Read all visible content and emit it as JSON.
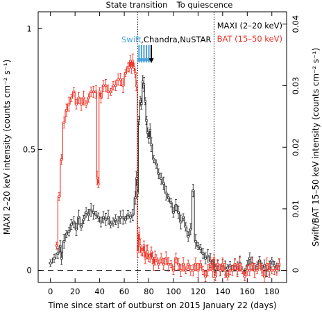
{
  "chart_data": {
    "type": "line",
    "xlabel": "Time since start of outburst on 2015 January 22 (days)",
    "ylabel_left": "MAXI 2–20 keV intensity (counts cm⁻² s⁻¹)",
    "ylabel_right": "Swift/BAT 15–50 keV intensity (counts cm⁻² s⁻¹)",
    "xlim": [
      -10,
      192
    ],
    "ylim_left": [
      -0.05,
      1.07
    ],
    "ylim_right": [
      -0.00196,
      0.042
    ],
    "x_ticks": [
      0,
      20,
      40,
      60,
      80,
      100,
      120,
      140,
      160,
      180
    ],
    "y_ticks_left": [
      0,
      0.5,
      1
    ],
    "y_ticks_right": [
      0,
      0.01,
      0.02,
      0.03,
      0.04
    ],
    "y_tick_labels_left": [
      "0",
      "0.5",
      "1"
    ],
    "y_tick_labels_right": [
      "0",
      "0.01",
      "0.02",
      "0.03",
      "0.04"
    ],
    "zero_line": 0,
    "markers": [
      {
        "label": "State transition",
        "x": 71
      },
      {
        "label": "To quiescence",
        "x": 133
      }
    ],
    "legend": {
      "position": "top-right",
      "entries": [
        "MAXI (2–20 keV)",
        "BAT (15–50 keV)"
      ]
    },
    "obs_labels": {
      "swift": "Swift",
      "rest": ",Chandra,NuSTAR"
    },
    "obs_arrows": {
      "swift": [
        72,
        74,
        76,
        78,
        80
      ],
      "chandra": [
        82
      ]
    },
    "colors": {
      "maxi": "#333333",
      "bat": "#ee3124",
      "swift": "#4aa3df",
      "chandra": "#000000"
    },
    "series": [
      {
        "name": "MAXI (2–20 keV)",
        "axis": "left",
        "x": [
          0,
          3,
          6,
          8,
          9,
          11,
          13,
          15,
          17,
          19,
          21,
          23,
          25,
          27,
          29,
          31,
          33,
          35,
          37,
          39,
          41,
          43,
          45,
          47,
          49,
          51,
          53,
          55,
          57,
          59,
          61,
          63,
          65,
          67,
          69,
          70,
          71,
          72,
          73,
          74,
          75,
          76,
          77,
          78,
          79,
          80,
          81,
          82,
          84,
          86,
          88,
          90,
          92,
          94,
          96,
          98,
          100,
          102,
          104,
          106,
          108,
          110,
          112,
          114,
          116,
          118,
          120,
          122,
          124,
          126,
          128,
          130,
          132,
          134,
          136,
          138,
          140,
          142,
          144,
          146,
          148,
          150,
          152,
          154,
          156,
          158,
          160,
          162,
          164,
          166,
          168,
          170,
          172,
          174,
          176,
          178,
          180,
          182,
          184,
          186
        ],
        "y": [
          0.03,
          0.05,
          0.07,
          0.1,
          0.05,
          0.12,
          0.15,
          0.16,
          0.19,
          0.2,
          0.17,
          0.22,
          0.18,
          0.21,
          0.24,
          0.23,
          0.25,
          0.24,
          0.23,
          0.22,
          0.2,
          0.22,
          0.21,
          0.22,
          0.19,
          0.2,
          0.21,
          0.2,
          0.22,
          0.22,
          0.21,
          0.23,
          0.22,
          0.23,
          0.3,
          0.38,
          0.32,
          0.62,
          0.7,
          0.69,
          0.78,
          0.77,
          0.7,
          0.62,
          0.57,
          0.55,
          0.58,
          0.52,
          0.46,
          0.44,
          0.4,
          0.38,
          0.36,
          0.32,
          0.3,
          0.28,
          0.24,
          0.27,
          0.24,
          0.2,
          0.22,
          0.18,
          0.14,
          0.17,
          0.33,
          0.12,
          0.1,
          0.09,
          0.07,
          0.05,
          0.06,
          0.04,
          0.03,
          0.01,
          0.02,
          0.0,
          0.02,
          0.01,
          0.01,
          0.02,
          0.0,
          0.02,
          0.01,
          0.03,
          0.0,
          -0.01,
          0.02,
          0.05,
          0.03,
          0.0,
          0.02,
          0.04,
          0.01,
          0.02,
          0.0,
          0.01,
          0.04,
          0.02,
          0.01,
          0.02
        ]
      },
      {
        "name": "BAT (15–50 keV)",
        "axis": "right",
        "x": [
          5,
          7,
          9,
          11,
          13,
          15,
          17,
          19,
          21,
          23,
          25,
          27,
          29,
          31,
          33,
          35,
          37,
          38,
          39,
          40,
          41,
          43,
          45,
          47,
          49,
          51,
          53,
          55,
          57,
          59,
          61,
          63,
          64,
          65,
          66,
          67,
          68,
          69,
          70,
          71,
          72,
          73,
          74,
          75,
          76,
          77,
          78,
          79,
          80,
          81,
          82,
          83,
          84,
          85,
          86,
          88,
          90,
          92,
          94,
          96,
          98,
          100,
          102,
          104,
          106,
          108,
          110,
          112,
          114,
          116,
          118,
          120,
          122,
          124,
          126,
          128,
          130,
          132,
          133,
          134,
          136,
          138,
          140,
          142,
          144,
          146,
          148,
          150,
          152,
          154,
          156,
          158,
          160,
          162,
          164,
          166,
          168,
          170,
          172,
          174,
          176,
          178,
          180,
          182,
          184,
          186
        ],
        "y": [
          0.004,
          0.012,
          0.018,
          0.024,
          0.026,
          0.027,
          0.028,
          0.029,
          0.027,
          0.028,
          0.027,
          0.028,
          0.027,
          0.028,
          0.029,
          0.029,
          0.029,
          0.015,
          0.014,
          0.029,
          0.028,
          0.03,
          0.03,
          0.029,
          0.029,
          0.03,
          0.03,
          0.031,
          0.031,
          0.03,
          0.032,
          0.033,
          0.033,
          0.034,
          0.033,
          0.034,
          0.033,
          0.032,
          0.03,
          0.003,
          0.006,
          0.004,
          0.003,
          0.003,
          0.004,
          0.002,
          0.003,
          0.003,
          0.002,
          0.002,
          0.003,
          0.002,
          0.001,
          0.002,
          0.002,
          0.001,
          0.002,
          0.001,
          0.002,
          0.001,
          0.001,
          0.0,
          0.002,
          0.001,
          0.0,
          0.001,
          0.0,
          0.001,
          0.0,
          0.0,
          0.001,
          0.0,
          0.001,
          0.0,
          -0.001,
          0.0,
          0.001,
          0.0,
          0.002,
          -0.001,
          0.001,
          0.0,
          0.001,
          0.0,
          -0.001,
          0.0,
          0.0,
          0.001,
          0.0,
          0.001,
          0.0,
          -0.001,
          0.0,
          0.0,
          0.001,
          0.0,
          0.0,
          0.001,
          0.0,
          -0.001,
          0.001,
          0.0,
          0.0,
          0.0,
          0.0,
          0.001
        ]
      }
    ]
  }
}
